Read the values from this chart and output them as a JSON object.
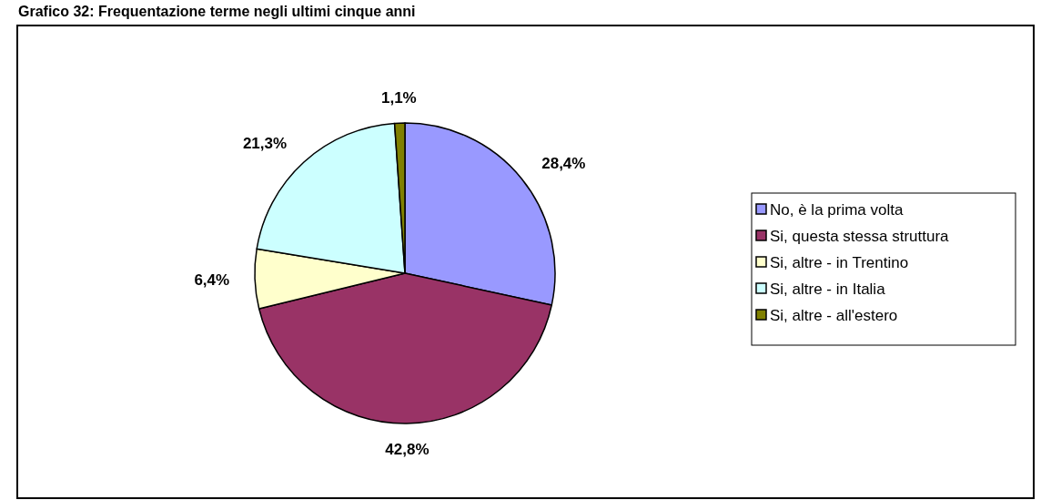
{
  "chart_data": {
    "type": "pie",
    "title": "Grafico 32: Frequentazione terme negli ultimi cinque anni",
    "categories": [
      "No, è la prima volta",
      "Si, questa stessa struttura",
      "Si, altre - in Trentino",
      "Si, altre - in Italia",
      "Si, altre - all'estero"
    ],
    "values": [
      28.4,
      42.8,
      6.4,
      21.3,
      1.1
    ],
    "colors": [
      "#9999ff",
      "#993366",
      "#ffffcc",
      "#ccffff",
      "#808000"
    ],
    "value_labels": [
      "28,4%",
      "42,8%",
      "6,4%",
      "21,3%",
      "1,1%"
    ],
    "legend": "right"
  }
}
